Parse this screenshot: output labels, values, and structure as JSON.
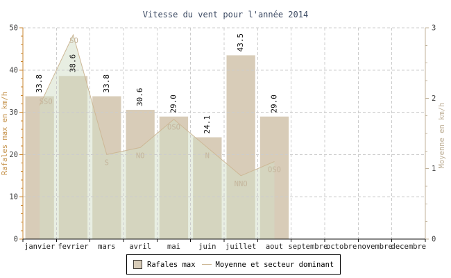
{
  "chart_data": {
    "type": "combo-bar-area-line",
    "title": "Vitesse du vent pour l'année 2014",
    "categories": [
      "janvier",
      "fevrier",
      "mars",
      "avril",
      "mai",
      "juin",
      "juillet",
      "aout",
      "septembre",
      "octobre",
      "novembre",
      "decembre"
    ],
    "series": [
      {
        "name": "Rafales max",
        "type": "bar",
        "axis": "left",
        "values": [
          33.8,
          38.6,
          33.8,
          30.6,
          29.0,
          24.1,
          43.5,
          29.0,
          null,
          null,
          null,
          null
        ]
      },
      {
        "name": "Moyenne et secteur dominant",
        "type": "area-line",
        "axis": "right",
        "values": [
          1.9,
          2.9,
          1.2,
          1.3,
          1.7,
          1.3,
          0.9,
          1.1,
          null,
          null,
          null,
          null
        ],
        "directions": [
          "SSO",
          "SO",
          "S",
          "NO",
          "OSO",
          "N",
          "NNO",
          "OSO",
          null,
          null,
          null,
          null
        ]
      }
    ],
    "axes": {
      "left": {
        "title": "Rafales max en km/h",
        "min": 0,
        "max": 50,
        "major": 10,
        "minor": 2
      },
      "right": {
        "title": "Moyenne en km/h",
        "min": 0,
        "max": 3,
        "major": 1,
        "minor": 0.25
      }
    },
    "grid": true,
    "legend_position": "bottom"
  },
  "legend": {
    "items": [
      {
        "label": "Rafales max",
        "swatch": "square"
      },
      {
        "label": "Moyenne et secteur dominant",
        "swatch": "line"
      }
    ]
  },
  "colors": {
    "bar_fill": "#d8ccb8",
    "area_fill": "rgba(210,221,198,0.5)",
    "line": "#cdb897",
    "direction_label": "#c4b59c",
    "left_axis": "#c8862f",
    "left_axis_title": "#c5924a",
    "right_axis": "#c0b29a",
    "right_axis_title": "#c0b29a",
    "grid": "#cccccc",
    "tick_label": "#3f3f3f",
    "month_label": "#222222",
    "value_label": "#0a0a0a",
    "x_axis": "#111111",
    "title": "#3c4a63"
  }
}
